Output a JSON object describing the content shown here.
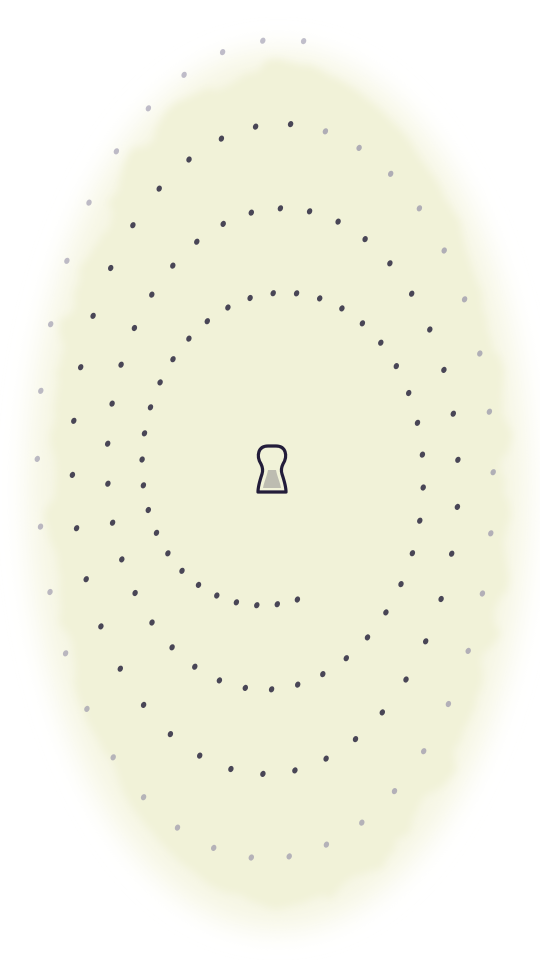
{
  "colors": {
    "background": "#ffffff",
    "paper": "#f1f2d8",
    "paper_edge": "#f6f6e4",
    "dot": "#2c2840",
    "dot_faint": "#8e8aa4",
    "icon": "#231d3a"
  },
  "icons": {
    "center": "keyhole-icon"
  }
}
